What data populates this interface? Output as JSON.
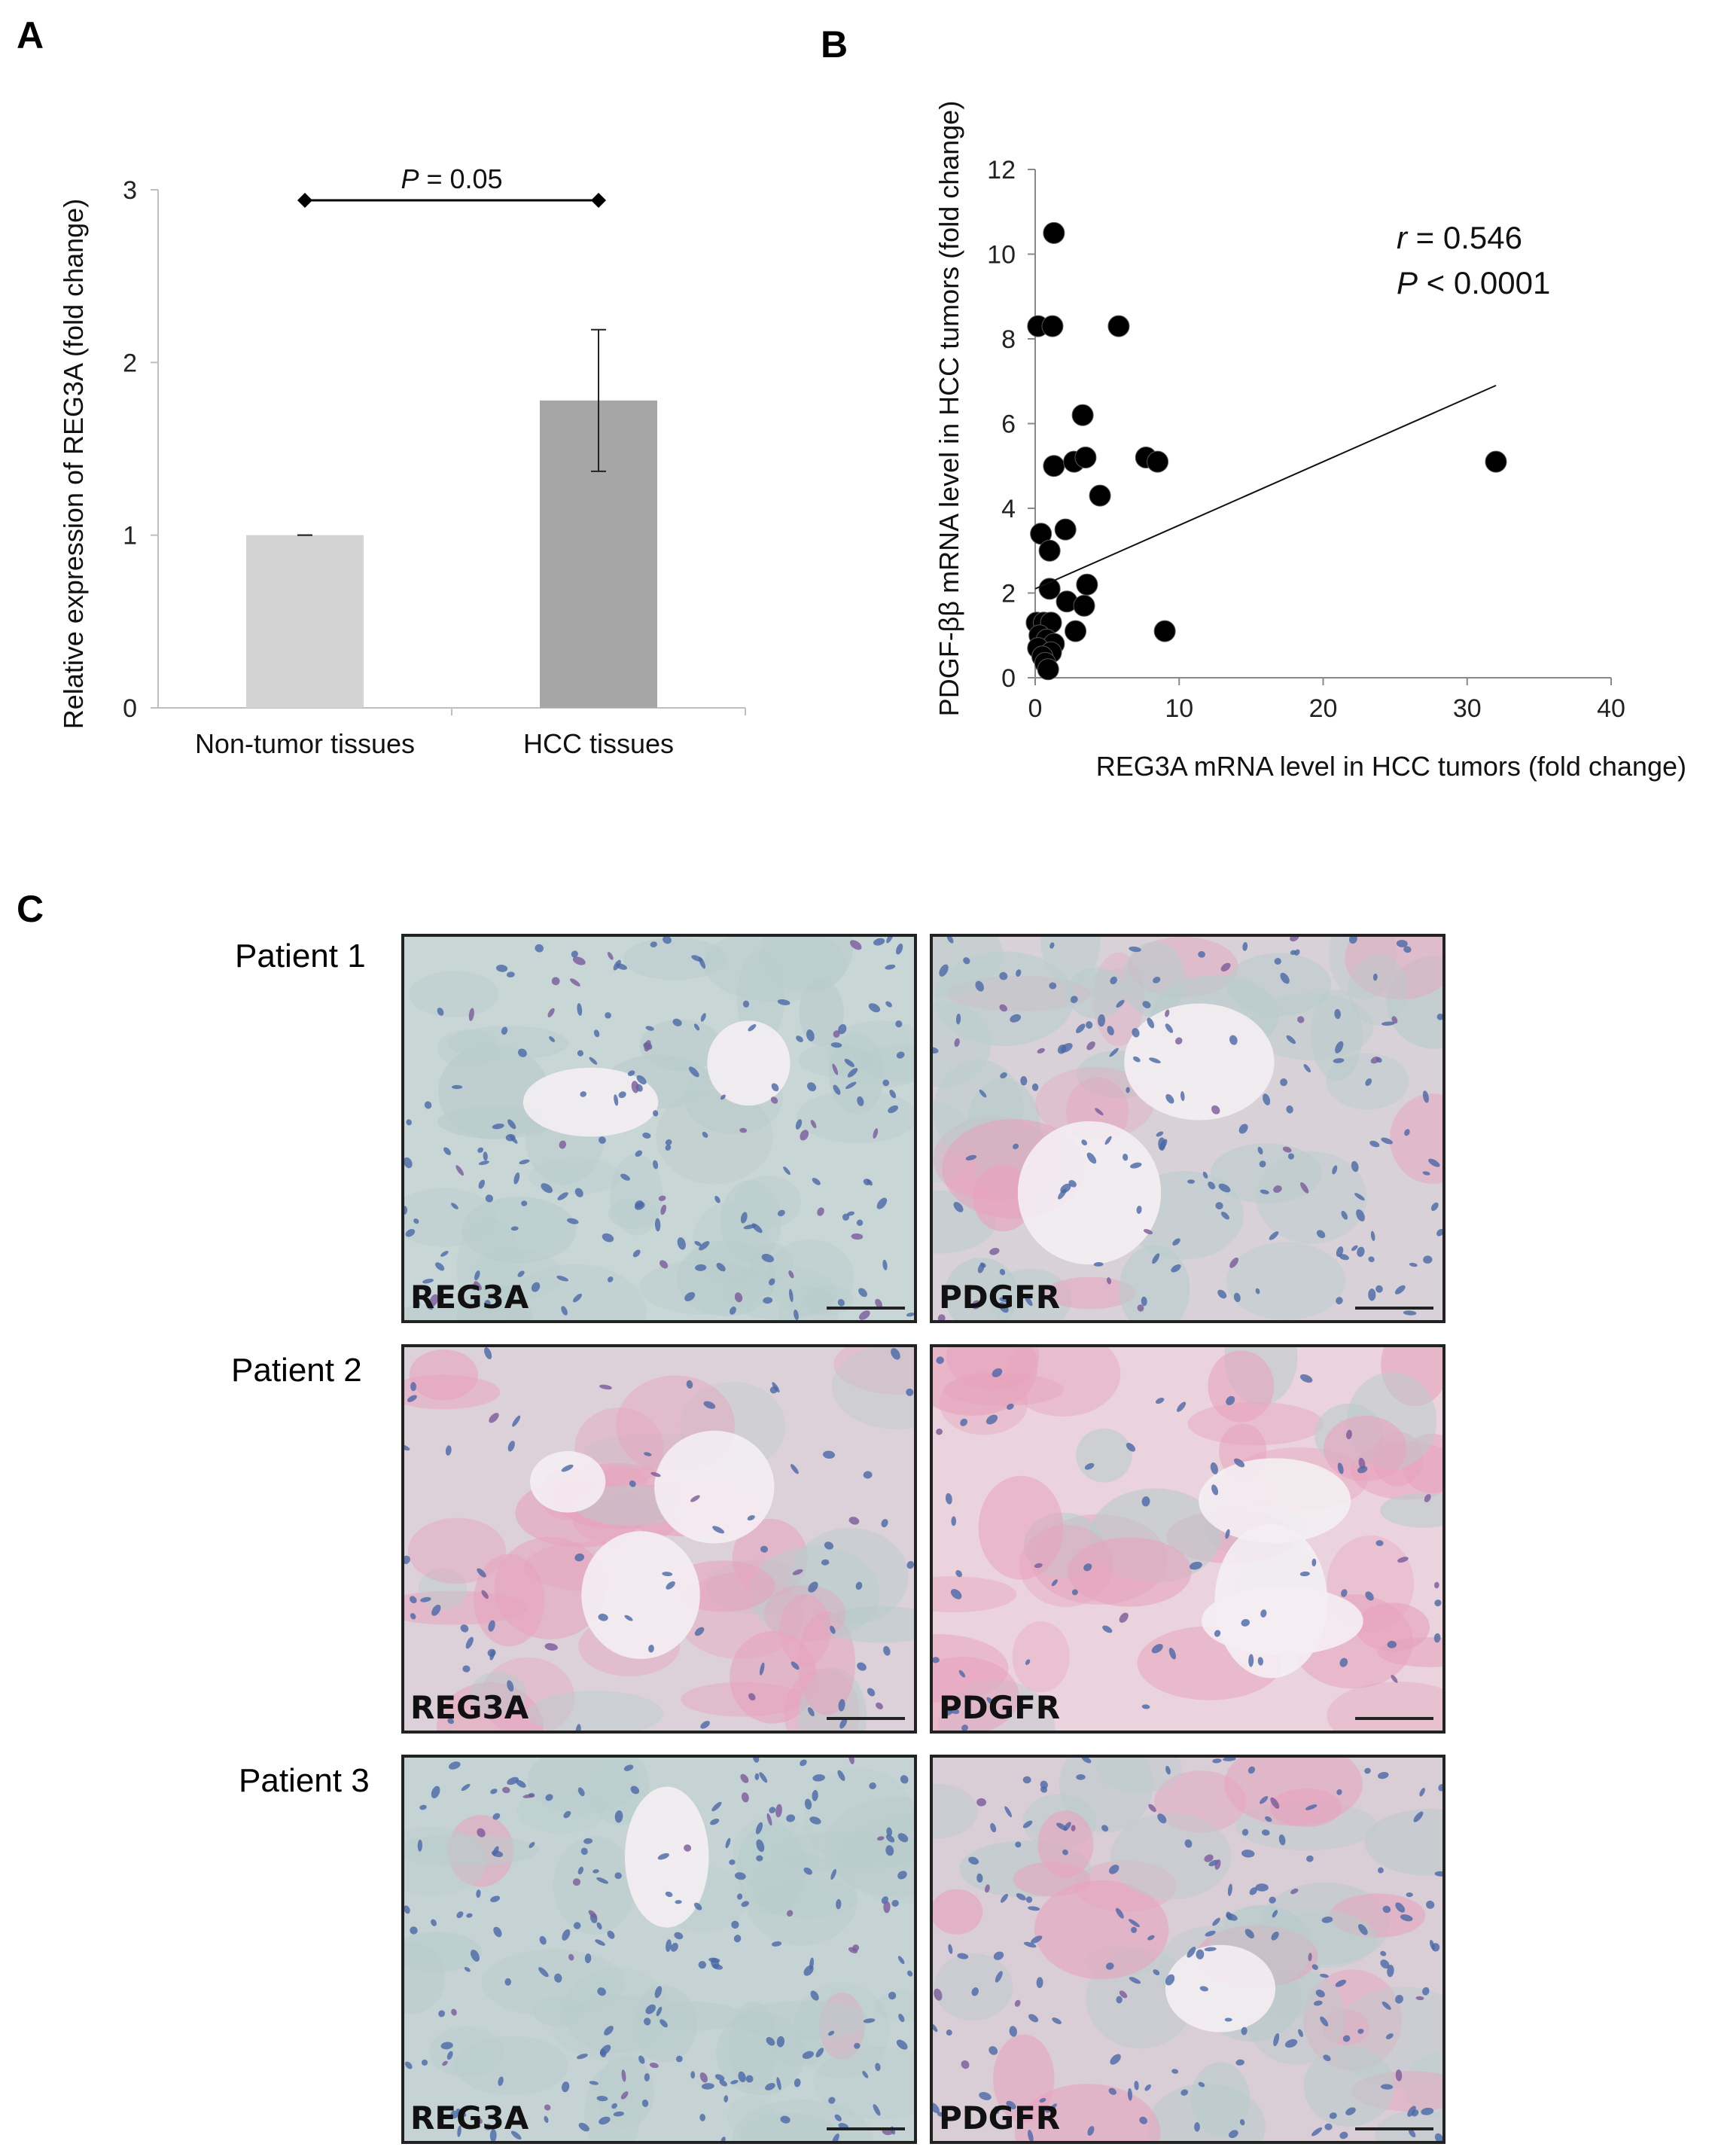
{
  "panels": {
    "a_letter": "A",
    "b_letter": "B",
    "c_letter": "C"
  },
  "chart_data": [
    {
      "type": "bar",
      "categories": [
        "Non-tumor tissues",
        "HCC tissues"
      ],
      "values": [
        1.0,
        1.78
      ],
      "error": [
        0.0,
        0.41
      ],
      "bar_colors": [
        "#d3d3d3",
        "#a6a6a6"
      ],
      "ylabel": "Relative expression of REG3A (fold change)",
      "ylim": [
        0,
        3
      ],
      "yticks": [
        "0",
        "1",
        "2",
        "3"
      ],
      "annotation": {
        "italic": "P",
        "text": " = 0.05"
      }
    },
    {
      "type": "scatter",
      "xlabel": "REG3A mRNA level in HCC tumors (fold change)",
      "ylabel": "PDGF-ββ mRNA level in HCC tumors (fold change)",
      "xlim": [
        0,
        40
      ],
      "ylim": [
        0,
        12
      ],
      "xticks": [
        "0",
        "10",
        "20",
        "30",
        "40"
      ],
      "yticks": [
        "0",
        "2",
        "4",
        "6",
        "8",
        "10",
        "12"
      ],
      "points": [
        [
          1.3,
          10.5
        ],
        [
          0.2,
          8.3
        ],
        [
          1.2,
          8.3
        ],
        [
          5.8,
          8.3
        ],
        [
          3.3,
          6.2
        ],
        [
          1.3,
          5.0
        ],
        [
          2.7,
          5.1
        ],
        [
          3.5,
          5.2
        ],
        [
          7.7,
          5.2
        ],
        [
          8.5,
          5.1
        ],
        [
          32.0,
          5.1
        ],
        [
          4.5,
          4.3
        ],
        [
          0.4,
          3.4
        ],
        [
          2.1,
          3.5
        ],
        [
          1.0,
          3.0
        ],
        [
          1.0,
          2.1
        ],
        [
          3.6,
          2.2
        ],
        [
          2.2,
          1.8
        ],
        [
          3.4,
          1.7
        ],
        [
          2.8,
          1.1
        ],
        [
          9.0,
          1.1
        ],
        [
          0.1,
          1.3
        ],
        [
          0.6,
          1.3
        ],
        [
          1.1,
          1.3
        ],
        [
          0.3,
          1.0
        ],
        [
          0.8,
          0.9
        ],
        [
          1.3,
          0.8
        ],
        [
          0.2,
          0.7
        ],
        [
          1.1,
          0.6
        ],
        [
          0.5,
          0.5
        ],
        [
          0.7,
          0.35
        ],
        [
          0.9,
          0.2
        ]
      ],
      "trendline": {
        "x": [
          0,
          32
        ],
        "y": [
          2.1,
          6.9
        ]
      },
      "stats": {
        "r_symbol": "r",
        "r_text": " = 0.546",
        "p_symbol": "P",
        "p_text": " < 0.0001"
      }
    }
  ],
  "panel_c": {
    "rows": [
      {
        "patient": "Patient 1",
        "left_label": "REG3A",
        "right_label": "PDGFR"
      },
      {
        "patient": "Patient 2",
        "left_label": "REG3A",
        "right_label": "PDGFR"
      },
      {
        "patient": "Patient 3",
        "left_label": "REG3A",
        "right_label": "PDGFR"
      }
    ]
  }
}
